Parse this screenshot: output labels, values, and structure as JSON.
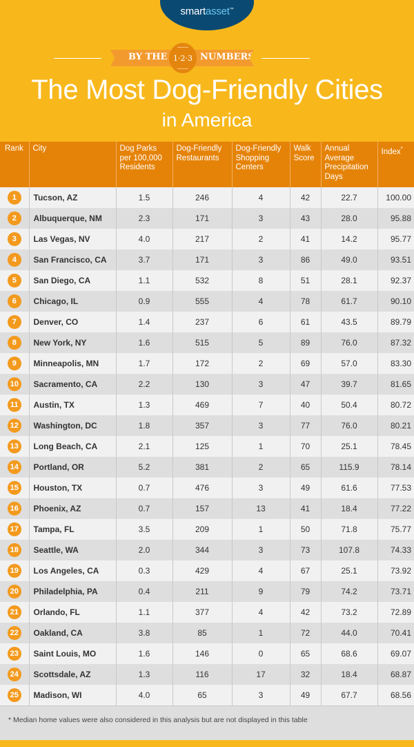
{
  "brand": {
    "name_part1": "smart",
    "name_part2": "asset",
    "tm": "™",
    "oval_color": "#0a4a72"
  },
  "byline": {
    "left": "BY THE",
    "badge": "1·2·3",
    "right": "NUMBERS"
  },
  "title": {
    "line1": "The Most Dog-Friendly Cities",
    "line2": "in America"
  },
  "colors": {
    "background": "#f8b81c",
    "header_row": "#e58308",
    "rank_circle": "#f39a1e",
    "row_light": "#f1f1f1",
    "row_dark": "#dedede"
  },
  "table": {
    "headers": [
      "Rank",
      "City",
      "Dog Parks per 100,000 Residents",
      "Dog-Friendly Restaurants",
      "Dog-Friendly Shopping Centers",
      "Walk Score",
      "Annual Average Precipitation Days",
      "Index"
    ],
    "index_marker": "*",
    "rows": [
      {
        "rank": "1",
        "city": "Tucson, AZ",
        "parks": "1.5",
        "restaurants": "246",
        "shopping": "4",
        "walk": "42",
        "precip": "22.7",
        "index": "100.00"
      },
      {
        "rank": "2",
        "city": "Albuquerque, NM",
        "parks": "2.3",
        "restaurants": "171",
        "shopping": "3",
        "walk": "43",
        "precip": "28.0",
        "index": "95.88"
      },
      {
        "rank": "3",
        "city": "Las Vegas, NV",
        "parks": "4.0",
        "restaurants": "217",
        "shopping": "2",
        "walk": "41",
        "precip": "14.2",
        "index": "95.77"
      },
      {
        "rank": "4",
        "city": "San Francisco, CA",
        "parks": "3.7",
        "restaurants": "171",
        "shopping": "3",
        "walk": "86",
        "precip": "49.0",
        "index": "93.51"
      },
      {
        "rank": "5",
        "city": "San Diego, CA",
        "parks": "1.1",
        "restaurants": "532",
        "shopping": "8",
        "walk": "51",
        "precip": "28.1",
        "index": "92.37"
      },
      {
        "rank": "6",
        "city": "Chicago, IL",
        "parks": "0.9",
        "restaurants": "555",
        "shopping": "4",
        "walk": "78",
        "precip": "61.7",
        "index": "90.10"
      },
      {
        "rank": "7",
        "city": "Denver, CO",
        "parks": "1.4",
        "restaurants": "237",
        "shopping": "6",
        "walk": "61",
        "precip": "43.5",
        "index": "89.79"
      },
      {
        "rank": "8",
        "city": "New York, NY",
        "parks": "1.6",
        "restaurants": "515",
        "shopping": "5",
        "walk": "89",
        "precip": "76.0",
        "index": "87.32"
      },
      {
        "rank": "9",
        "city": "Minneapolis, MN",
        "parks": "1.7",
        "restaurants": "172",
        "shopping": "2",
        "walk": "69",
        "precip": "57.0",
        "index": "83.30"
      },
      {
        "rank": "10",
        "city": "Sacramento, CA",
        "parks": "2.2",
        "restaurants": "130",
        "shopping": "3",
        "walk": "47",
        "precip": "39.7",
        "index": "81.65"
      },
      {
        "rank": "11",
        "city": "Austin, TX",
        "parks": "1.3",
        "restaurants": "469",
        "shopping": "7",
        "walk": "40",
        "precip": "50.4",
        "index": "80.72"
      },
      {
        "rank": "12",
        "city": "Washington, DC",
        "parks": "1.8",
        "restaurants": "357",
        "shopping": "3",
        "walk": "77",
        "precip": "76.0",
        "index": "80.21"
      },
      {
        "rank": "13",
        "city": "Long Beach, CA",
        "parks": "2.1",
        "restaurants": "125",
        "shopping": "1",
        "walk": "70",
        "precip": "25.1",
        "index": "78.45"
      },
      {
        "rank": "14",
        "city": "Portland, OR",
        "parks": "5.2",
        "restaurants": "381",
        "shopping": "2",
        "walk": "65",
        "precip": "115.9",
        "index": "78.14"
      },
      {
        "rank": "15",
        "city": "Houston, TX",
        "parks": "0.7",
        "restaurants": "476",
        "shopping": "3",
        "walk": "49",
        "precip": "61.6",
        "index": "77.53"
      },
      {
        "rank": "16",
        "city": "Phoenix, AZ",
        "parks": "0.7",
        "restaurants": "157",
        "shopping": "13",
        "walk": "41",
        "precip": "18.4",
        "index": "77.22"
      },
      {
        "rank": "17",
        "city": "Tampa, FL",
        "parks": "3.5",
        "restaurants": "209",
        "shopping": "1",
        "walk": "50",
        "precip": "71.8",
        "index": "75.77"
      },
      {
        "rank": "18",
        "city": "Seattle, WA",
        "parks": "2.0",
        "restaurants": "344",
        "shopping": "3",
        "walk": "73",
        "precip": "107.8",
        "index": "74.33"
      },
      {
        "rank": "19",
        "city": "Los Angeles, CA",
        "parks": "0.3",
        "restaurants": "429",
        "shopping": "4",
        "walk": "67",
        "precip": "25.1",
        "index": "73.92"
      },
      {
        "rank": "20",
        "city": "Philadelphia, PA",
        "parks": "0.4",
        "restaurants": "211",
        "shopping": "9",
        "walk": "79",
        "precip": "74.2",
        "index": "73.71"
      },
      {
        "rank": "21",
        "city": "Orlando, FL",
        "parks": "1.1",
        "restaurants": "377",
        "shopping": "4",
        "walk": "42",
        "precip": "73.2",
        "index": "72.89"
      },
      {
        "rank": "22",
        "city": "Oakland, CA",
        "parks": "3.8",
        "restaurants": "85",
        "shopping": "1",
        "walk": "72",
        "precip": "44.0",
        "index": "70.41"
      },
      {
        "rank": "23",
        "city": "Saint Louis, MO",
        "parks": "1.6",
        "restaurants": "146",
        "shopping": "0",
        "walk": "65",
        "precip": "68.6",
        "index": "69.07"
      },
      {
        "rank": "24",
        "city": "Scottsdale, AZ",
        "parks": "1.3",
        "restaurants": "116",
        "shopping": "17",
        "walk": "32",
        "precip": "18.4",
        "index": "68.87"
      },
      {
        "rank": "25",
        "city": "Madison, WI",
        "parks": "4.0",
        "restaurants": "65",
        "shopping": "3",
        "walk": "49",
        "precip": "67.7",
        "index": "68.56"
      }
    ]
  },
  "footnote": "* Median home values were also considered in this analysis but are not displayed in this table",
  "chart_data": {
    "type": "table",
    "title": "The Most Dog-Friendly Cities in America",
    "columns": [
      "Rank",
      "City",
      "Dog Parks per 100,000 Residents",
      "Dog-Friendly Restaurants",
      "Dog-Friendly Shopping Centers",
      "Walk Score",
      "Annual Average Precipitation Days",
      "Index*"
    ],
    "rows": [
      [
        1,
        "Tucson, AZ",
        1.5,
        246,
        4,
        42,
        22.7,
        100.0
      ],
      [
        2,
        "Albuquerque, NM",
        2.3,
        171,
        3,
        43,
        28.0,
        95.88
      ],
      [
        3,
        "Las Vegas, NV",
        4.0,
        217,
        2,
        41,
        14.2,
        95.77
      ],
      [
        4,
        "San Francisco, CA",
        3.7,
        171,
        3,
        86,
        49.0,
        93.51
      ],
      [
        5,
        "San Diego, CA",
        1.1,
        532,
        8,
        51,
        28.1,
        92.37
      ],
      [
        6,
        "Chicago, IL",
        0.9,
        555,
        4,
        78,
        61.7,
        90.1
      ],
      [
        7,
        "Denver, CO",
        1.4,
        237,
        6,
        61,
        43.5,
        89.79
      ],
      [
        8,
        "New York, NY",
        1.6,
        515,
        5,
        89,
        76.0,
        87.32
      ],
      [
        9,
        "Minneapolis, MN",
        1.7,
        172,
        2,
        69,
        57.0,
        83.3
      ],
      [
        10,
        "Sacramento, CA",
        2.2,
        130,
        3,
        47,
        39.7,
        81.65
      ],
      [
        11,
        "Austin, TX",
        1.3,
        469,
        7,
        40,
        50.4,
        80.72
      ],
      [
        12,
        "Washington, DC",
        1.8,
        357,
        3,
        77,
        76.0,
        80.21
      ],
      [
        13,
        "Long Beach, CA",
        2.1,
        125,
        1,
        70,
        25.1,
        78.45
      ],
      [
        14,
        "Portland, OR",
        5.2,
        381,
        2,
        65,
        115.9,
        78.14
      ],
      [
        15,
        "Houston, TX",
        0.7,
        476,
        3,
        49,
        61.6,
        77.53
      ],
      [
        16,
        "Phoenix, AZ",
        0.7,
        157,
        13,
        41,
        18.4,
        77.22
      ],
      [
        17,
        "Tampa, FL",
        3.5,
        209,
        1,
        50,
        71.8,
        75.77
      ],
      [
        18,
        "Seattle, WA",
        2.0,
        344,
        3,
        73,
        107.8,
        74.33
      ],
      [
        19,
        "Los Angeles, CA",
        0.3,
        429,
        4,
        67,
        25.1,
        73.92
      ],
      [
        20,
        "Philadelphia, PA",
        0.4,
        211,
        9,
        79,
        74.2,
        73.71
      ],
      [
        21,
        "Orlando, FL",
        1.1,
        377,
        4,
        42,
        73.2,
        72.89
      ],
      [
        22,
        "Oakland, CA",
        3.8,
        85,
        1,
        72,
        44.0,
        70.41
      ],
      [
        23,
        "Saint Louis, MO",
        1.6,
        146,
        0,
        65,
        68.6,
        69.07
      ],
      [
        24,
        "Scottsdale, AZ",
        1.3,
        116,
        17,
        32,
        18.4,
        68.87
      ],
      [
        25,
        "Madison, WI",
        4.0,
        65,
        3,
        49,
        67.7,
        68.56
      ]
    ],
    "footnote": "* Median home values were also considered in this analysis but are not displayed in this table"
  }
}
